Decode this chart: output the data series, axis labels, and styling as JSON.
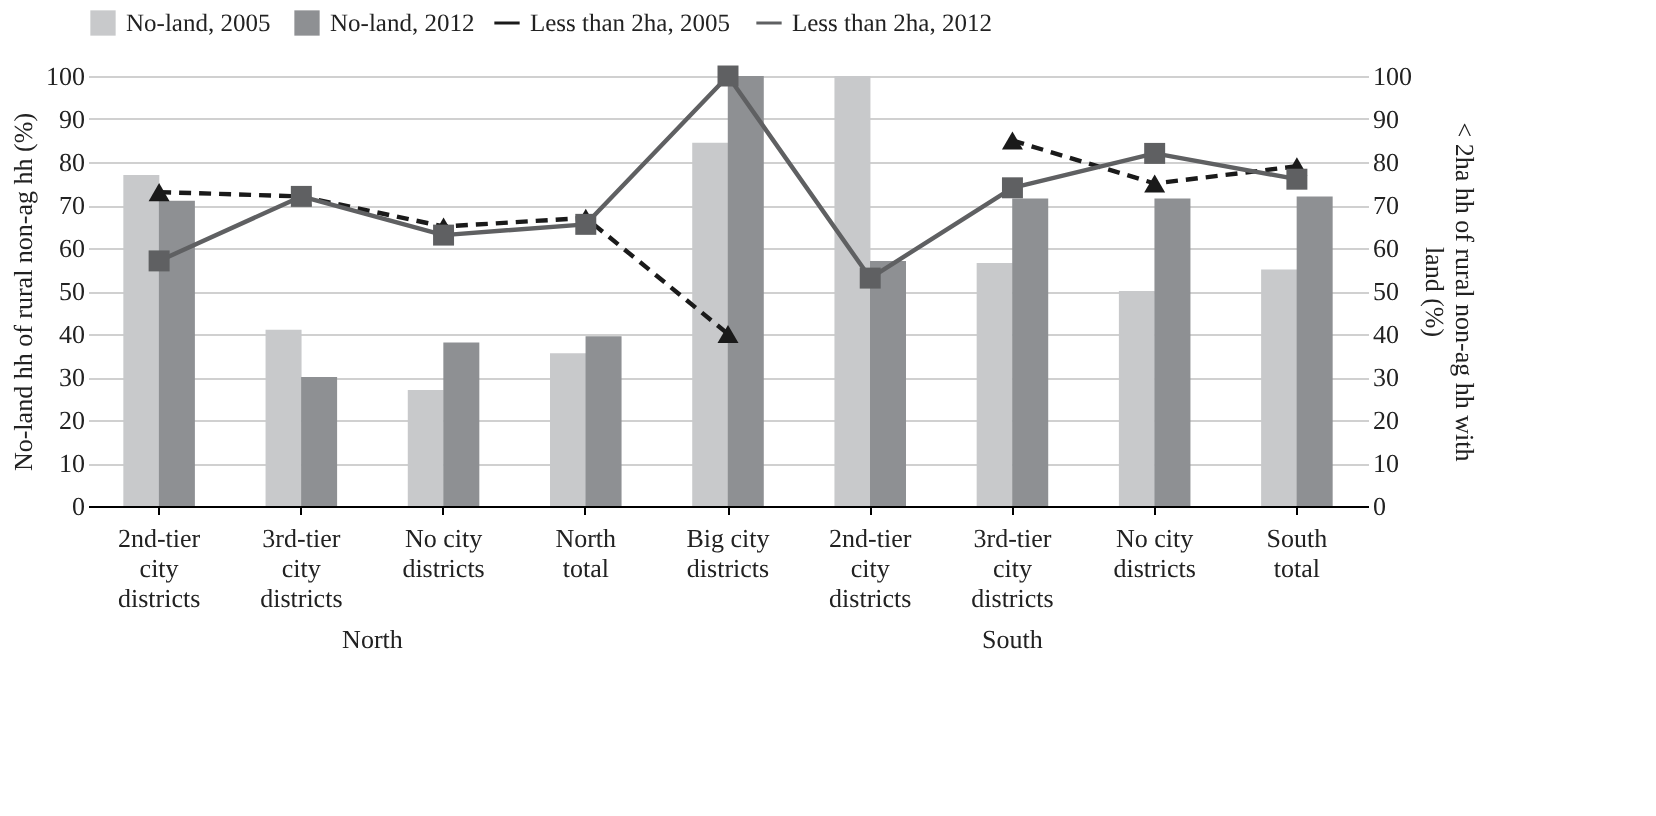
{
  "chart_data": {
    "type": "bar",
    "ylabel": "No-land hh of rural non-ag hh (%)",
    "y2label": "< 2ha hh of rural non-ag hh with land (%)",
    "categories": [
      "2nd-tier city districts",
      "3rd-tier city districts",
      "No city districts",
      "North total",
      "Big city districts",
      "2nd-tier city districts",
      "3rd-tier city districts",
      "No city districts",
      "South total"
    ],
    "series": [
      {
        "name": "No-land, 2005",
        "color": "#c8c9cb",
        "values": [
          77,
          41,
          27,
          35.5,
          84.5,
          100,
          56.5,
          50,
          55
        ]
      },
      {
        "name": "No-land, 2012",
        "color": "#8e9093",
        "values": [
          71,
          30,
          38,
          39.5,
          100,
          57,
          71.5,
          71.5,
          72
        ]
      },
      {
        "name": "Less than 2ha, 2005",
        "type": "line",
        "axis": "y2",
        "color": "#1a1a1a",
        "marker": "triangle",
        "line_style": "dashed",
        "values": [
          73,
          72,
          65,
          67,
          40,
          null,
          85,
          75,
          79
        ]
      },
      {
        "name": "Less than 2ha, 2012",
        "type": "line",
        "axis": "y2",
        "color": "#5f6062",
        "marker": "square",
        "line_style": "solid",
        "values": [
          57,
          72,
          63,
          65.5,
          100,
          53,
          74,
          82,
          76
        ]
      }
    ],
    "ylim": [
      0,
      100
    ],
    "yticks": [
      0,
      10,
      20,
      30,
      40,
      50,
      60,
      70,
      80,
      90,
      100
    ],
    "y2lim": [
      0,
      100
    ],
    "y2ticks": [
      0,
      10,
      20,
      30,
      40,
      50,
      60,
      70,
      80,
      90,
      100
    ],
    "grid": "y",
    "legend": "top",
    "annotations": [
      "North",
      "South"
    ]
  }
}
